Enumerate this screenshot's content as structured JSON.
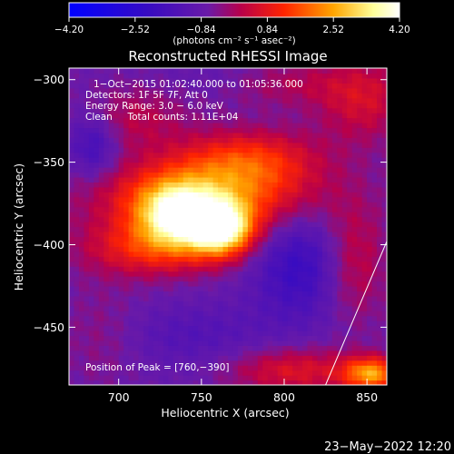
{
  "chart_data": {
    "type": "heatmap",
    "title": "Reconstructed RHESSI Image",
    "xlabel": "Heliocentric X (arcsec)",
    "ylabel": "Heliocentric Y (arcsec)",
    "xlim": [
      670,
      862
    ],
    "ylim": [
      -485,
      -293
    ],
    "x_ticks": [
      700,
      750,
      800,
      850
    ],
    "x_tick_labels": [
      "700",
      "750",
      "800",
      "850"
    ],
    "y_ticks": [
      -300,
      -350,
      -400,
      -450
    ],
    "y_tick_labels": [
      "−300",
      "−350",
      "−400",
      "−450"
    ],
    "colorbar": {
      "range": [
        -4.2,
        4.2
      ],
      "ticks": [
        -4.2,
        -2.52,
        -0.84,
        0.84,
        2.52,
        4.2
      ],
      "tick_labels": [
        "−4.20",
        "−2.52",
        "−0.84",
        "0.84",
        "2.52",
        "4.20"
      ],
      "units_text": "(photons cm⁻² s⁻¹ asec⁻²)"
    },
    "annotations": [
      "1−Oct−2015 01:02:40.000 to 01:05:36.000",
      "Detectors: 1F 5F 7F, Att 0",
      "Energy Range: 3.0 − 6.0 keV",
      "Clean     Total counts: 1.11E+04"
    ],
    "peak_text": "Position of Peak = [760,−390]",
    "peak": [
      760,
      -390
    ],
    "limb_line": [
      [
        825,
        -485
      ],
      [
        862,
        -398
      ]
    ],
    "sources": [
      {
        "x": 762,
        "y": -390,
        "sx": 13,
        "sy": 11,
        "amp": 4.3
      },
      {
        "x": 735,
        "y": -382,
        "sx": 16,
        "sy": 13,
        "amp": 3.4
      },
      {
        "x": 752,
        "y": -371,
        "sx": 44,
        "sy": 16,
        "amp": 2.7
      },
      {
        "x": 720,
        "y": -402,
        "sx": 30,
        "sy": 12,
        "amp": 1.8
      },
      {
        "x": 778,
        "y": -348,
        "sx": 30,
        "sy": 13,
        "amp": 1.8
      },
      {
        "x": 710,
        "y": -323,
        "sx": 22,
        "sy": 14,
        "amp": 0.9
      },
      {
        "x": 853,
        "y": -478,
        "sx": 12,
        "sy": 7,
        "amp": 3.0
      },
      {
        "x": 806,
        "y": -476,
        "sx": 28,
        "sy": 10,
        "amp": 1.5
      },
      {
        "x": 842,
        "y": -410,
        "sx": 14,
        "sy": 26,
        "amp": 1.2
      },
      {
        "x": 848,
        "y": -312,
        "sx": 20,
        "sy": 18,
        "amp": 1.3
      },
      {
        "x": 800,
        "y": -302,
        "sx": 28,
        "sy": 10,
        "amp": 0.8
      },
      {
        "x": 690,
        "y": -455,
        "sx": 18,
        "sy": 22,
        "amp": 0.5
      },
      {
        "x": 685,
        "y": -340,
        "sx": 10,
        "sy": 14,
        "amp": -1.2
      },
      {
        "x": 810,
        "y": -412,
        "sx": 20,
        "sy": 24,
        "amp": -1.4
      },
      {
        "x": 745,
        "y": -455,
        "sx": 34,
        "sy": 14,
        "amp": -0.6
      },
      {
        "x": 762,
        "y": -298,
        "sx": 26,
        "sy": 9,
        "amp": -0.3
      }
    ],
    "colors": {
      "background": "#000000",
      "text": "#ffffff",
      "colormap": [
        "#0000ff",
        "#2d00b4",
        "#6a1aa8",
        "#b8004a",
        "#ff2400",
        "#ffa500",
        "#ffff99",
        "#ffffff"
      ]
    }
  },
  "footer_date": "23−May−2022 12:20"
}
